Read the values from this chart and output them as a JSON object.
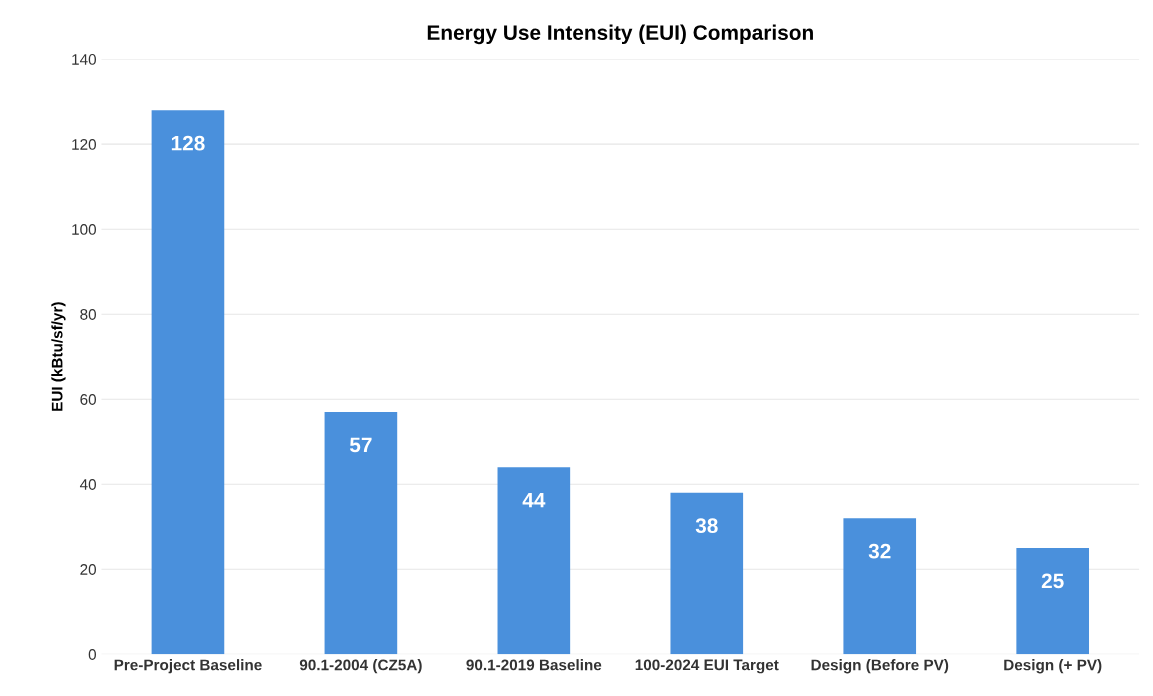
{
  "chart_data": {
    "type": "bar",
    "title": "Energy Use Intensity (EUI) Comparison",
    "ylabel": "EUI (kBtu/sf/yr)",
    "categories": [
      "Pre-Project Baseline",
      "90.1-2004 (CZ5A)",
      "90.1-2019 Baseline",
      "100-2024 EUI Target",
      "Design (Before PV)",
      "Design (+ PV)"
    ],
    "values": [
      128,
      57,
      44,
      38,
      32,
      25
    ],
    "color": "#4a90dc",
    "ylim": [
      0,
      140
    ],
    "yticks": [
      0,
      20,
      40,
      60,
      80,
      100,
      120,
      140
    ],
    "grid": "y",
    "data_labels": true
  }
}
